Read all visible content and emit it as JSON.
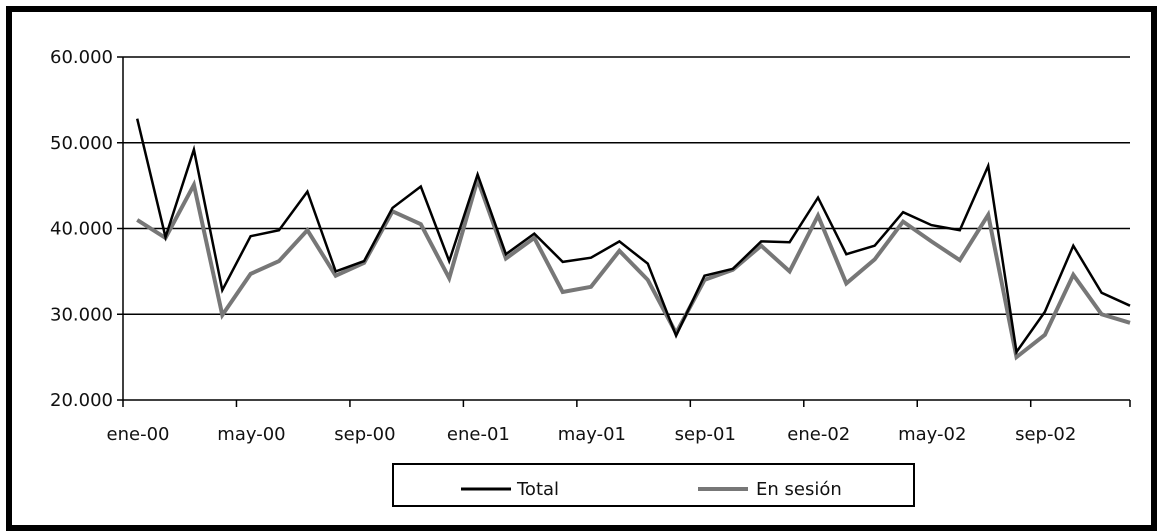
{
  "chart_data": {
    "type": "line",
    "title": "",
    "xlabel": "",
    "ylabel": "",
    "ylim": [
      20000,
      60000
    ],
    "y_ticks": [
      20000,
      30000,
      40000,
      50000,
      60000
    ],
    "y_tick_labels": [
      "20.000",
      "30.000",
      "40.000",
      "50.000",
      "60.000"
    ],
    "x_tick_labels": [
      {
        "index": 0,
        "label": "ene-00"
      },
      {
        "index": 4,
        "label": "may-00"
      },
      {
        "index": 8,
        "label": "sep-00"
      },
      {
        "index": 12,
        "label": "ene-01"
      },
      {
        "index": 16,
        "label": "may-01"
      },
      {
        "index": 20,
        "label": "sep-01"
      },
      {
        "index": 24,
        "label": "ene-02"
      },
      {
        "index": 28,
        "label": "may-02"
      },
      {
        "index": 32,
        "label": "sep-02"
      }
    ],
    "categories": [
      "ene-00",
      "feb-00",
      "mar-00",
      "abr-00",
      "may-00",
      "jun-00",
      "jul-00",
      "ago-00",
      "sep-00",
      "oct-00",
      "nov-00",
      "dic-00",
      "ene-01",
      "feb-01",
      "mar-01",
      "abr-01",
      "may-01",
      "jun-01",
      "jul-01",
      "ago-01",
      "sep-01",
      "oct-01",
      "nov-01",
      "dic-01",
      "ene-02",
      "feb-02",
      "mar-02",
      "abr-02",
      "may-02",
      "jun-02",
      "jul-02",
      "ago-02",
      "sep-02",
      "oct-02",
      "nov-02",
      "dic-02"
    ],
    "grid": true,
    "legend_position": "bottom-center",
    "series": [
      {
        "name": "Total",
        "color": "#000000",
        "values": [
          52800,
          39000,
          49200,
          32800,
          39100,
          39800,
          44300,
          35000,
          36200,
          42400,
          44900,
          36200,
          46300,
          37000,
          39400,
          36100,
          36600,
          38500,
          35900,
          27500,
          34500,
          35300,
          38500,
          38400,
          43600,
          37000,
          38000,
          41900,
          40400,
          39800,
          47300,
          25600,
          30300,
          38000,
          32500,
          31000
        ]
      },
      {
        "name": "En sesión",
        "color": "#777777",
        "values": [
          41000,
          38900,
          45100,
          29900,
          34700,
          36200,
          39800,
          34500,
          36000,
          42000,
          40500,
          34200,
          45700,
          36500,
          38900,
          32600,
          33200,
          37400,
          34000,
          27800,
          34000,
          35200,
          38000,
          35000,
          41500,
          33600,
          36400,
          40800,
          38500,
          36300,
          41600,
          25000,
          27600,
          34600,
          30000,
          29000
        ]
      }
    ]
  }
}
